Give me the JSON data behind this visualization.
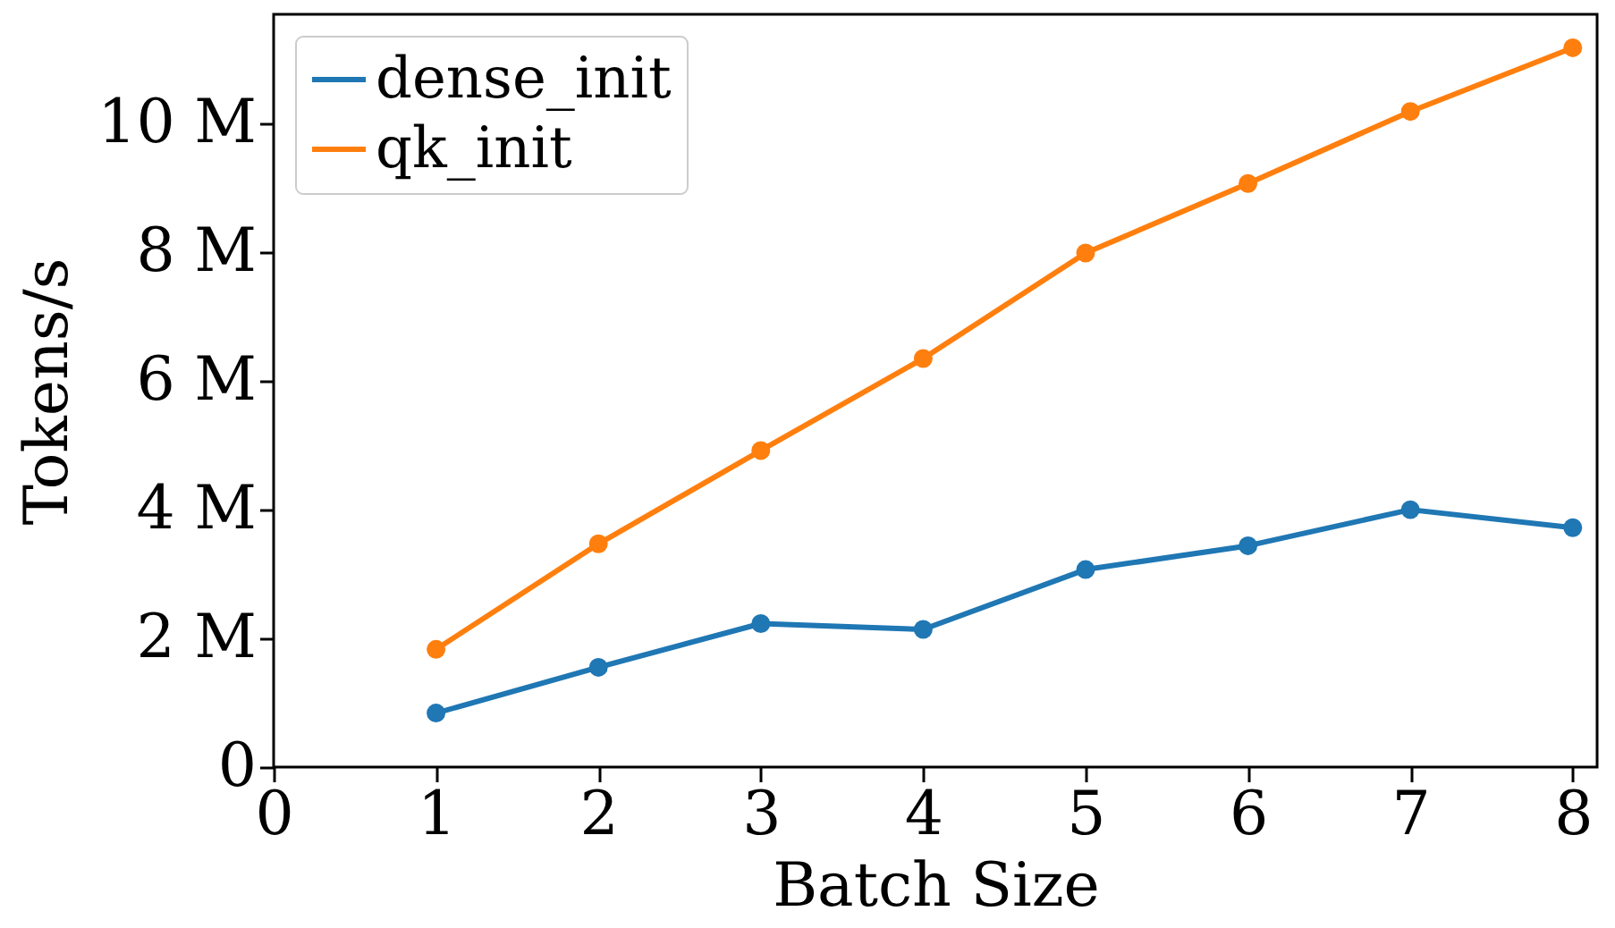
{
  "chart_data": {
    "type": "line",
    "xlabel": "Batch Size",
    "ylabel": "Tokens/s",
    "x": [
      1,
      2,
      3,
      4,
      5,
      6,
      7,
      8
    ],
    "series": [
      {
        "name": "dense_init",
        "color": "#1f77b4",
        "values": [
          0.84,
          1.55,
          2.23,
          2.14,
          3.07,
          3.44,
          4.0,
          3.72
        ]
      },
      {
        "name": "qk_init",
        "color": "#ff7f0e",
        "values": [
          1.83,
          3.47,
          4.92,
          6.35,
          7.99,
          9.07,
          10.19,
          11.18
        ]
      }
    ],
    "xlim": [
      0,
      8.15
    ],
    "xticks": [
      0,
      1,
      2,
      3,
      4,
      5,
      6,
      7,
      8
    ],
    "ylim": [
      0,
      11.7
    ],
    "yticks": [
      0,
      {
        "value": 2,
        "label": "2 M"
      },
      {
        "value": 4,
        "label": "4 M"
      },
      {
        "value": 6,
        "label": "6 M"
      },
      {
        "value": 8,
        "label": "8 M"
      },
      {
        "value": 10,
        "label": "10 M"
      }
    ],
    "grid": false,
    "legend": "top left",
    "marker": "circle",
    "line_style": "solid"
  }
}
